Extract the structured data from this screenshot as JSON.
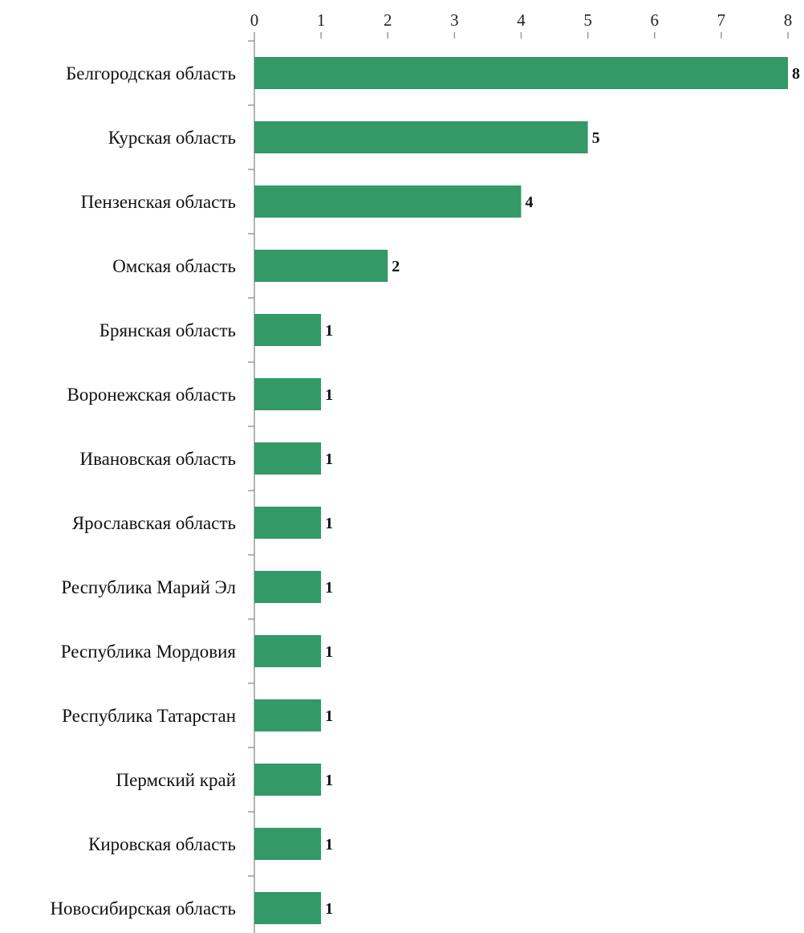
{
  "chart_data": {
    "type": "bar",
    "orientation": "horizontal",
    "title": "",
    "xlabel": "",
    "ylabel": "",
    "xlim": [
      0,
      8
    ],
    "x_ticks": [
      "0",
      "1",
      "2",
      "3",
      "4",
      "5",
      "6",
      "7",
      "8"
    ],
    "x_axis_position": "top",
    "grid": false,
    "legend": "none",
    "bar_color": "#339966",
    "categories": [
      "Белгородская область",
      "Курская область",
      "Пензенская область",
      "Омская область",
      "Брянская область",
      "Воронежская область",
      "Ивановская область",
      "Ярославская область",
      "Республика Марий Эл",
      "Республика Мордовия",
      "Республика Татарстан",
      "Пермский край",
      "Кировская область",
      "Новосибирская область"
    ],
    "values": [
      8,
      5,
      4,
      2,
      1,
      1,
      1,
      1,
      1,
      1,
      1,
      1,
      1,
      1
    ],
    "data_labels": [
      "8",
      "5",
      "4",
      "2",
      "1",
      "1",
      "1",
      "1",
      "1",
      "1",
      "1",
      "1",
      "1",
      "1"
    ]
  }
}
